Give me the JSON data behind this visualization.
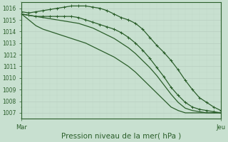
{
  "title": "Pression niveau de la mer( hPa )",
  "xlabel_left": "Mar",
  "xlabel_right": "Jeu",
  "ylabel_ticks": [
    1007,
    1008,
    1009,
    1010,
    1011,
    1012,
    1013,
    1014,
    1015,
    1016
  ],
  "ylim": [
    1006.5,
    1016.5
  ],
  "xlim": [
    0,
    28
  ],
  "background_color": "#c8e0d0",
  "grid_major_color": "#b8cec0",
  "grid_minor_color": "#c0d8c8",
  "line_color": "#2a5e2a",
  "series": [
    [
      1015.7,
      1015.6,
      1015.7,
      1015.8,
      1015.9,
      1016.0,
      1016.1,
      1016.2,
      1016.2,
      1016.2,
      1016.1,
      1016.0,
      1015.8,
      1015.5,
      1015.2,
      1015.0,
      1014.7,
      1014.2,
      1013.5,
      1012.8,
      1012.2,
      1011.5,
      1010.7,
      1009.8,
      1009.0,
      1008.3,
      1007.9,
      1007.5,
      1007.2
    ],
    [
      1015.5,
      1015.4,
      1015.3,
      1015.3,
      1015.3,
      1015.3,
      1015.3,
      1015.3,
      1015.2,
      1015.0,
      1014.8,
      1014.6,
      1014.4,
      1014.2,
      1013.9,
      1013.5,
      1013.0,
      1012.4,
      1011.7,
      1010.9,
      1010.1,
      1009.2,
      1008.5,
      1007.9,
      1007.5,
      1007.3,
      1007.2,
      1007.1,
      1007.0
    ],
    [
      1015.5,
      1015.4,
      1015.3,
      1015.2,
      1015.1,
      1015.0,
      1014.9,
      1014.8,
      1014.7,
      1014.5,
      1014.3,
      1014.0,
      1013.7,
      1013.4,
      1013.0,
      1012.6,
      1012.1,
      1011.5,
      1010.9,
      1010.2,
      1009.4,
      1008.6,
      1007.9,
      1007.4,
      1007.2,
      1007.1,
      1007.0,
      1007.0,
      1007.0
    ],
    [
      1015.5,
      1015.0,
      1014.5,
      1014.2,
      1014.0,
      1013.8,
      1013.6,
      1013.4,
      1013.2,
      1013.0,
      1012.7,
      1012.4,
      1012.1,
      1011.8,
      1011.4,
      1011.0,
      1010.5,
      1009.9,
      1009.3,
      1008.7,
      1008.1,
      1007.5,
      1007.2,
      1007.0,
      1007.0,
      1007.0,
      1007.0,
      1007.0,
      1007.0
    ]
  ],
  "markers": [
    true,
    true,
    false,
    false
  ],
  "n_points": 29,
  "figsize": [
    3.2,
    2.0
  ],
  "dpi": 100,
  "tick_fontsize": 5.5,
  "xlabel_fontsize": 7.5,
  "linewidth": 0.9,
  "markersize": 3.0
}
